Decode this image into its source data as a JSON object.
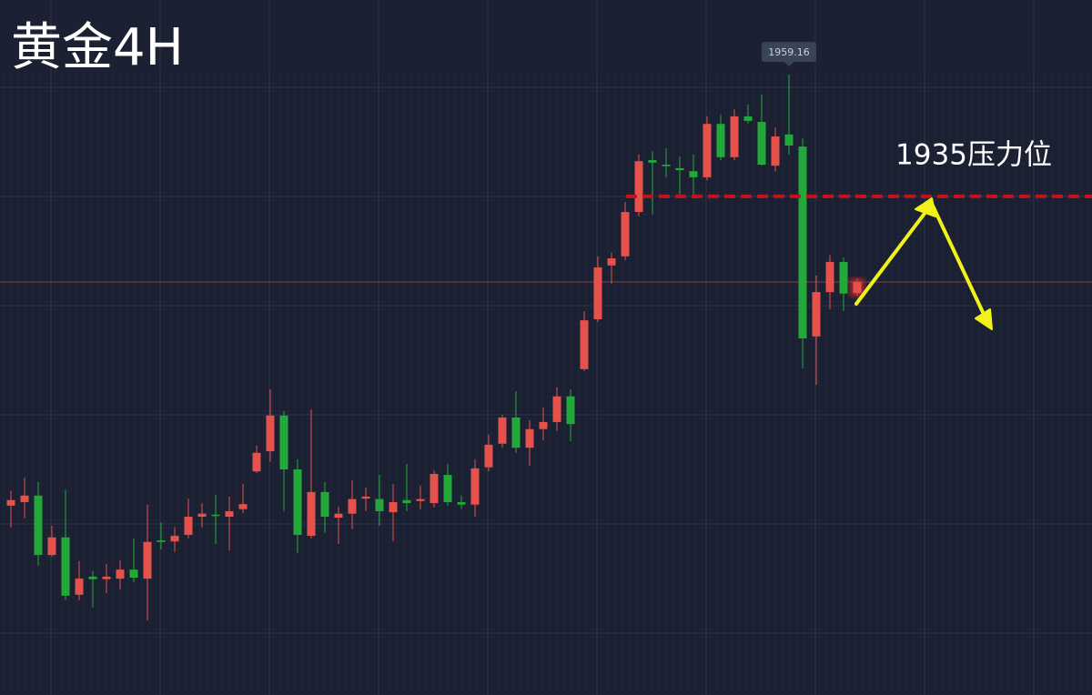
{
  "chart_data": {
    "type": "candlestick",
    "title": "黄金4H",
    "ylim": [
      1836,
      1974
    ],
    "up_color": "#e5524b",
    "down_color": "#23a93a",
    "open": [
      1873.6,
      1874.3,
      1875.6,
      1863.8,
      1867.3,
      1855.9,
      1859.5,
      1859.0,
      1859.1,
      1860.9,
      1859.1,
      1866.7,
      1866.5,
      1867.8,
      1871.4,
      1871.8,
      1871.4,
      1872.9,
      1880.4,
      1884.4,
      1891.5,
      1880.8,
      1867.6,
      1876.3,
      1871.2,
      1872.0,
      1875.0,
      1874.9,
      1872.3,
      1874.7,
      1874.5,
      1874.1,
      1879.7,
      1874.3,
      1873.8,
      1881.2,
      1885.9,
      1891.1,
      1885.1,
      1888.8,
      1890.2,
      1895.3,
      1900.7,
      1910.6,
      1921.3,
      1923.1,
      1931.9,
      1942.2,
      1941.3,
      1940.6,
      1940.0,
      1938.8,
      1949.4,
      1942.8,
      1950.9,
      1949.8,
      1941.1,
      1947.3,
      1944.9,
      1907.2,
      1916.0,
      1922.0,
      1915.8
    ],
    "high": [
      1876.5,
      1879.2,
      1878.3,
      1869.6,
      1876.8,
      1862.6,
      1860.6,
      1862.0,
      1862.7,
      1867.1,
      1873.8,
      1870.3,
      1869.3,
      1875.0,
      1874.1,
      1875.8,
      1875.4,
      1877.9,
      1885.5,
      1896.7,
      1892.4,
      1882.8,
      1892.7,
      1878.3,
      1873.4,
      1878.6,
      1877.2,
      1879.7,
      1877.9,
      1881.9,
      1877.6,
      1880.6,
      1881.9,
      1875.6,
      1882.8,
      1887.7,
      1891.6,
      1896.3,
      1890.6,
      1893.1,
      1897.1,
      1896.7,
      1912.2,
      1923.1,
      1923.8,
      1933.9,
      1943.3,
      1944.0,
      1944.6,
      1942.9,
      1943.3,
      1950.9,
      1951.2,
      1952.3,
      1953.2,
      1955.2,
      1948.7,
      1959.16,
      1946.5,
      1919.3,
      1923.4,
      1922.9,
      1918.7
    ],
    "low": [
      1869.3,
      1871.1,
      1861.7,
      1863.5,
      1854.8,
      1854.8,
      1853.4,
      1856.2,
      1857.0,
      1858.4,
      1850.8,
      1864.9,
      1864.4,
      1867.1,
      1869.3,
      1866.0,
      1864.7,
      1872.1,
      1880.1,
      1882.3,
      1872.5,
      1864.2,
      1867.1,
      1868.2,
      1866.0,
      1868.9,
      1872.5,
      1869.6,
      1866.5,
      1872.5,
      1872.9,
      1873.2,
      1873.6,
      1872.9,
      1871.4,
      1880.4,
      1885.1,
      1884.1,
      1881.5,
      1886.6,
      1888.4,
      1886.4,
      1900.3,
      1910.1,
      1917.7,
      1922.3,
      1931.0,
      1931.4,
      1938.8,
      1935.4,
      1934.6,
      1938.2,
      1942.2,
      1942.2,
      1949.4,
      1941.1,
      1940.0,
      1943.3,
      1900.9,
      1897.6,
      1912.6,
      1912.2,
      1915.3
    ],
    "close": [
      1874.7,
      1875.6,
      1863.8,
      1867.3,
      1855.7,
      1859.1,
      1859.0,
      1859.5,
      1860.9,
      1859.3,
      1866.4,
      1866.4,
      1867.6,
      1871.4,
      1872.0,
      1871.6,
      1872.5,
      1873.9,
      1884.1,
      1891.5,
      1880.8,
      1867.8,
      1876.3,
      1871.4,
      1872.0,
      1874.9,
      1875.4,
      1872.5,
      1874.3,
      1874.1,
      1874.9,
      1879.9,
      1874.3,
      1873.8,
      1881.0,
      1885.7,
      1891.1,
      1885.1,
      1888.8,
      1890.2,
      1895.3,
      1889.8,
      1910.4,
      1920.9,
      1922.7,
      1931.9,
      1942.0,
      1941.7,
      1941.0,
      1940.2,
      1938.8,
      1949.4,
      1942.8,
      1950.9,
      1950.0,
      1941.3,
      1946.9,
      1945.1,
      1906.8,
      1916.0,
      1922.0,
      1915.7,
      1918.0
    ],
    "resistance": {
      "label": "1935压力位",
      "value": 1935,
      "color": "#c0141a"
    }
  }
}
